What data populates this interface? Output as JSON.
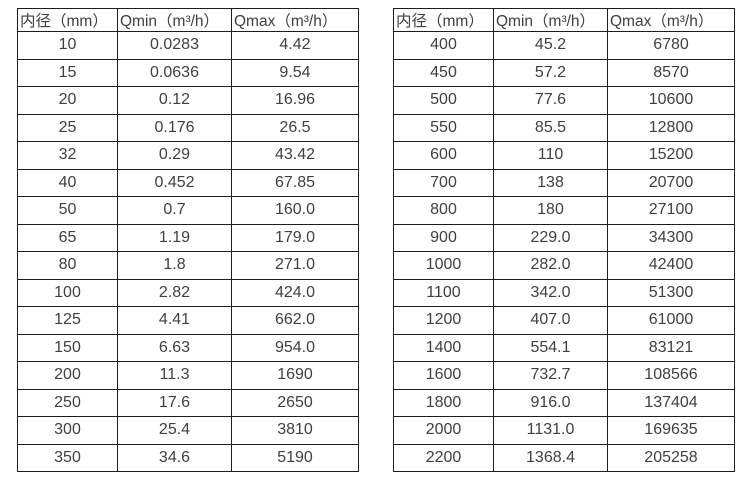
{
  "colors": {
    "background": "#ffffff",
    "border": "#1c1c1c",
    "text": "#3f3f3f"
  },
  "tables": [
    {
      "name": "small-diameter-flow-table",
      "headers": [
        "内径（mm）",
        "Qmin（m³/h）",
        "Qmax（m³/h）"
      ],
      "rows": [
        [
          "10",
          "0.0283",
          "4.42"
        ],
        [
          "15",
          "0.0636",
          "9.54"
        ],
        [
          "20",
          "0.12",
          "16.96"
        ],
        [
          "25",
          "0.176",
          "26.5"
        ],
        [
          "32",
          "0.29",
          "43.42"
        ],
        [
          "40",
          "0.452",
          "67.85"
        ],
        [
          "50",
          "0.7",
          "160.0"
        ],
        [
          "65",
          "1.19",
          "179.0"
        ],
        [
          "80",
          "1.8",
          "271.0"
        ],
        [
          "100",
          "2.82",
          "424.0"
        ],
        [
          "125",
          "4.41",
          "662.0"
        ],
        [
          "150",
          "6.63",
          "954.0"
        ],
        [
          "200",
          "11.3",
          "1690"
        ],
        [
          "250",
          "17.6",
          "2650"
        ],
        [
          "300",
          "25.4",
          "3810"
        ],
        [
          "350",
          "34.6",
          "5190"
        ]
      ]
    },
    {
      "name": "large-diameter-flow-table",
      "headers": [
        "内径（mm）",
        "Qmin（m³/h）",
        "Qmax（m³/h）"
      ],
      "rows": [
        [
          "400",
          "45.2",
          "6780"
        ],
        [
          "450",
          "57.2",
          "8570"
        ],
        [
          "500",
          "77.6",
          "10600"
        ],
        [
          "550",
          "85.5",
          "12800"
        ],
        [
          "600",
          "110",
          "15200"
        ],
        [
          "700",
          "138",
          "20700"
        ],
        [
          "800",
          "180",
          "27100"
        ],
        [
          "900",
          "229.0",
          "34300"
        ],
        [
          "1000",
          "282.0",
          "42400"
        ],
        [
          "1100",
          "342.0",
          "51300"
        ],
        [
          "1200",
          "407.0",
          "61000"
        ],
        [
          "1400",
          "554.1",
          "83121"
        ],
        [
          "1600",
          "732.7",
          "108566"
        ],
        [
          "1800",
          "916.0",
          "137404"
        ],
        [
          "2000",
          "1131.0",
          "169635"
        ],
        [
          "2200",
          "1368.4",
          "205258"
        ]
      ]
    }
  ]
}
